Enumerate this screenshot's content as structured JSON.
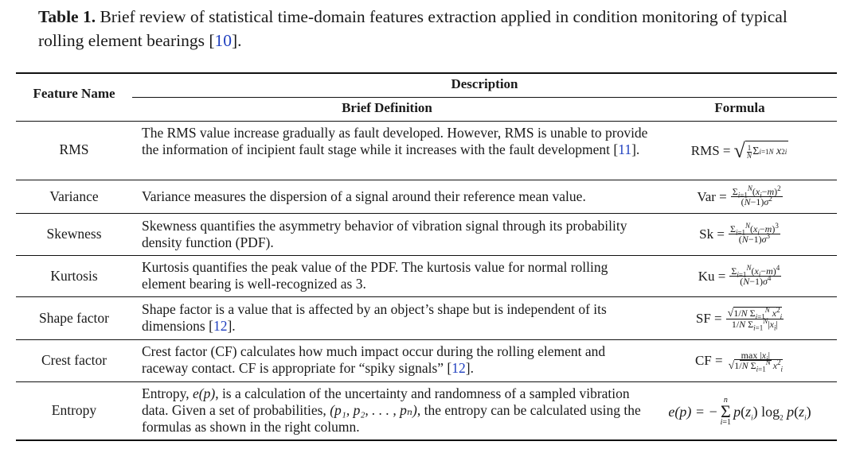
{
  "caption": {
    "label": "Table 1.",
    "text": " Brief review of statistical time-domain features extraction applied in condition monitoring of typical rolling element bearings [",
    "ref": "10",
    "end": "]."
  },
  "headers": {
    "feature_name": "Feature Name",
    "description": "Description",
    "brief_definition": "Brief Definition",
    "formula": "Formula"
  },
  "rows": [
    {
      "name": "RMS",
      "definition": "The RMS value increase gradually as fault developed. However, RMS is unable to provide the information of incipient fault stage while it increases with the fault development [",
      "ref": "11",
      "def_end": "].",
      "formula_lhs": "RMS ="
    },
    {
      "name": "Variance",
      "definition": "Variance measures the dispersion of a signal around their reference mean value.",
      "formula_lhs": "Var ="
    },
    {
      "name": "Skewness",
      "definition": "Skewness quantifies the asymmetry behavior of vibration signal through its probability density function (PDF).",
      "formula_lhs": "Sk ="
    },
    {
      "name": "Kurtosis",
      "definition": "Kurtosis quantifies the peak value of the PDF. The kurtosis value for normal rolling element bearing is well-recognized as 3.",
      "formula_lhs": "Ku ="
    },
    {
      "name": "Shape factor",
      "definition": "Shape factor is a value that is affected by an object’s shape but is independent of its dimensions [",
      "ref": "12",
      "def_end": "].",
      "formula_lhs": "SF ="
    },
    {
      "name": "Crest factor",
      "definition": "Crest factor (CF) calculates how much impact occur during the rolling element and raceway contact. CF is appropriate for “spiky signals” [",
      "ref": "12",
      "def_end": "].",
      "formula_lhs": "CF ="
    },
    {
      "name": "Entropy",
      "definition_a": "Entropy, ",
      "definition_b": "e(p)",
      "definition_c": ", is a calculation of the uncertainty and randomness of a sampled vibration data. Given a set of probabilities, ",
      "definition_d": "(p₁, p₂, . . . , pₙ)",
      "definition_e": ", the entropy can be calculated using the formulas as shown in the right column.",
      "formula_lhs": "e(p) = −"
    }
  ],
  "colors": {
    "link": "#1f3fbf",
    "rule": "#111111"
  }
}
